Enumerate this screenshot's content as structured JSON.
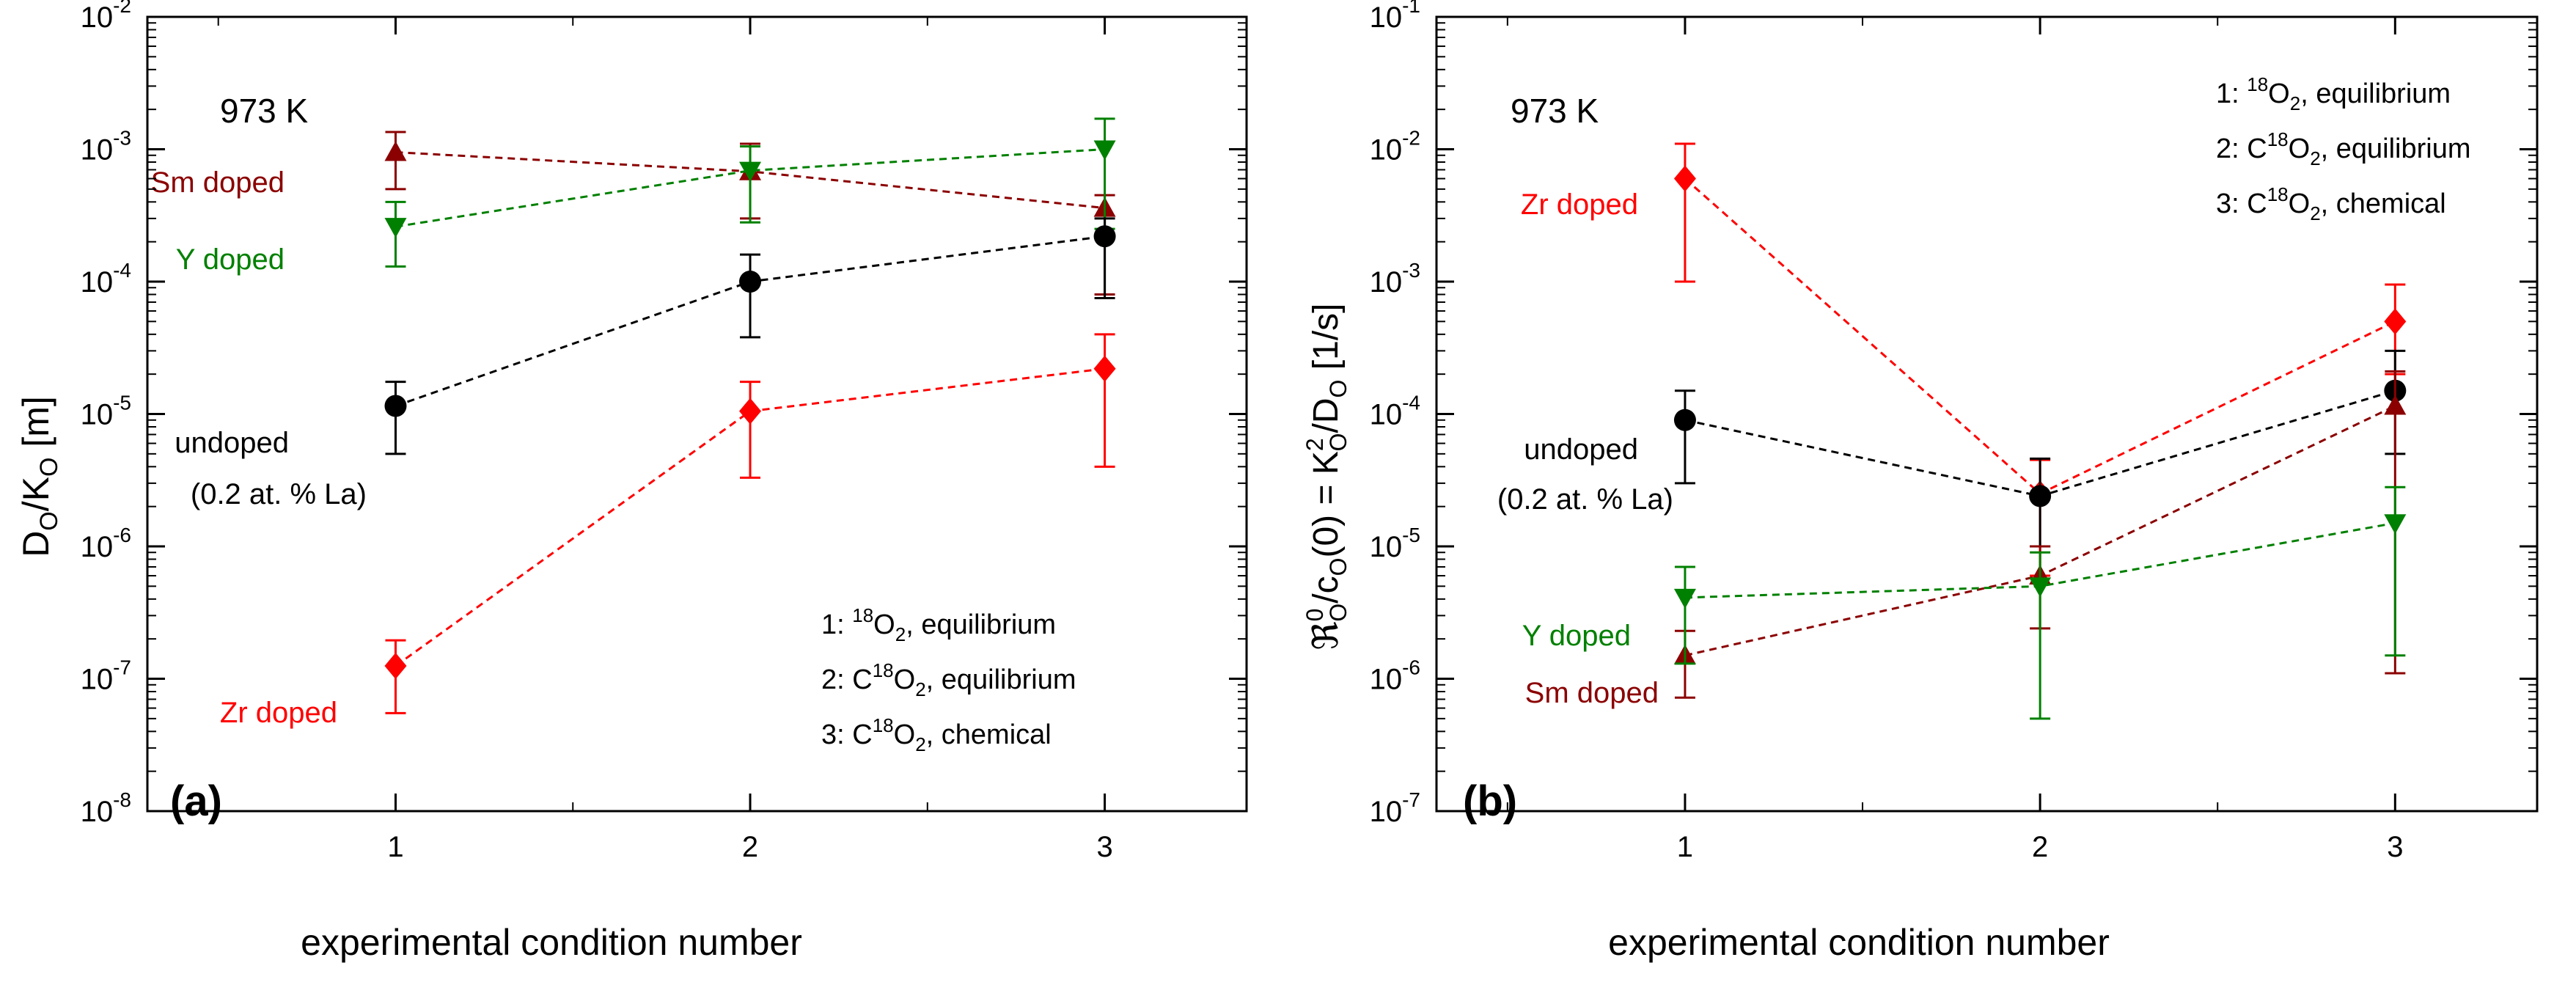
{
  "colors": {
    "undoped": "#000000",
    "Sm doped": "#8b0000",
    "Y doped": "#008000",
    "Zr doped": "#ff0000"
  },
  "chart_data": [
    {
      "id": "a",
      "type": "scatter",
      "scale_y": "log",
      "panel_label": "(a)",
      "temperature": "973 K",
      "xlabel": "experimental condition number",
      "ylabel": "D_O/K_O [m]",
      "xlim": [
        0.3,
        3.4
      ],
      "ylim": [
        1e-08,
        0.01
      ],
      "x_ticks": [
        "1",
        "2",
        "3"
      ],
      "y_ticks": [
        {
          "base": "10",
          "exp": "-8"
        },
        {
          "base": "10",
          "exp": "-7"
        },
        {
          "base": "10",
          "exp": "-6"
        },
        {
          "base": "10",
          "exp": "-5"
        },
        {
          "base": "10",
          "exp": "-4"
        },
        {
          "base": "10",
          "exp": "-3"
        },
        {
          "base": "10",
          "exp": "-2"
        }
      ],
      "series": [
        {
          "name": "Sm doped",
          "marker": "triangle-up",
          "x": [
            1,
            2,
            3
          ],
          "y": [
            0.00095,
            0.00068,
            0.00036
          ],
          "err_low": [
            0.0005,
            0.0003,
            8e-05
          ],
          "err_high": [
            0.00135,
            0.0011,
            0.00045
          ]
        },
        {
          "name": "Y doped",
          "marker": "triangle-down",
          "x": [
            1,
            2,
            3
          ],
          "y": [
            0.00026,
            0.00069,
            0.001
          ],
          "err_low": [
            0.00013,
            0.00028,
            0.00025
          ],
          "err_high": [
            0.0004,
            0.00105,
            0.0017
          ]
        },
        {
          "name": "undoped",
          "marker": "circle",
          "x": [
            1,
            2,
            3
          ],
          "y": [
            1.15e-05,
            0.0001,
            0.00022
          ],
          "err_low": [
            5e-06,
            3.8e-05,
            7.5e-05
          ],
          "err_high": [
            1.75e-05,
            0.00016,
            0.0003
          ]
        },
        {
          "name": "Zr doped",
          "marker": "diamond",
          "x": [
            1,
            2,
            3
          ],
          "y": [
            1.25e-07,
            1.05e-05,
            2.2e-05
          ],
          "err_low": [
            5.5e-08,
            3.3e-06,
            4e-06
          ],
          "err_high": [
            1.95e-07,
            1.75e-05,
            4e-05
          ]
        }
      ],
      "series_labels": [
        {
          "series": "Sm doped",
          "text": "Sm doped"
        },
        {
          "series": "Y doped",
          "text": "Y doped"
        },
        {
          "series": "undoped",
          "text": "undoped"
        },
        {
          "series": "undoped",
          "text": "(0.2 at. % La)"
        },
        {
          "series": "Zr doped",
          "text": "Zr doped"
        }
      ],
      "conditions": [
        {
          "prefix": "1: ",
          "sup": "18",
          "main": "O",
          "sub": "2",
          "suffix": ", equilibrium"
        },
        {
          "prefix": "2: C",
          "sup": "18",
          "main": "O",
          "sub": "2",
          "suffix": ", equilibrium"
        },
        {
          "prefix": "3: C",
          "sup": "18",
          "main": "O",
          "sub": "2",
          "suffix": ", chemical"
        }
      ]
    },
    {
      "id": "b",
      "type": "scatter",
      "scale_y": "log",
      "panel_label": "(b)",
      "temperature": "973 K",
      "xlabel": "experimental condition number",
      "ylabel": "ℜ_O^0/c_O(0) = K_O^2/D_O [1/s]",
      "xlim": [
        0.3,
        3.4
      ],
      "ylim": [
        1e-07,
        0.1
      ],
      "x_ticks": [
        "1",
        "2",
        "3"
      ],
      "y_ticks": [
        {
          "base": "10",
          "exp": "-7"
        },
        {
          "base": "10",
          "exp": "-6"
        },
        {
          "base": "10",
          "exp": "-5"
        },
        {
          "base": "10",
          "exp": "-4"
        },
        {
          "base": "10",
          "exp": "-3"
        },
        {
          "base": "10",
          "exp": "-2"
        },
        {
          "base": "10",
          "exp": "-1"
        }
      ],
      "series": [
        {
          "name": "Zr doped",
          "marker": "diamond",
          "x": [
            1,
            2,
            3
          ],
          "y": [
            0.006,
            2.5e-05,
            0.0005
          ],
          "err_low": [
            0.001,
            6e-06,
            0.0002
          ],
          "err_high": [
            0.011,
            4.5e-05,
            0.00095
          ]
        },
        {
          "name": "undoped",
          "marker": "circle",
          "x": [
            1,
            2,
            3
          ],
          "y": [
            9e-05,
            2.4e-05,
            0.00015
          ],
          "err_low": [
            3e-05,
            1e-05,
            5e-05
          ],
          "err_high": [
            0.00015,
            4.6e-05,
            0.0003
          ]
        },
        {
          "name": "Sm doped",
          "marker": "triangle-up",
          "x": [
            1,
            2,
            3
          ],
          "y": [
            1.5e-06,
            6e-06,
            0.000115
          ],
          "err_low": [
            7.2e-07,
            2.4e-06,
            1.1e-06
          ],
          "err_high": [
            2.3e-06,
            1e-05,
            0.00021
          ]
        },
        {
          "name": "Y doped",
          "marker": "triangle-down",
          "x": [
            1,
            2,
            3
          ],
          "y": [
            4.1e-06,
            5e-06,
            1.5e-05
          ],
          "err_low": [
            1.3e-06,
            5e-07,
            1.5e-06
          ],
          "err_high": [
            7e-06,
            9e-06,
            2.8e-05
          ]
        }
      ],
      "series_labels": [
        {
          "series": "Zr doped",
          "text": "Zr doped"
        },
        {
          "series": "undoped",
          "text": "undoped"
        },
        {
          "series": "undoped",
          "text": "(0.2 at. % La)"
        },
        {
          "series": "Y doped",
          "text": "Y doped"
        },
        {
          "series": "Sm doped",
          "text": "Sm doped"
        }
      ],
      "conditions": [
        {
          "prefix": "1: ",
          "sup": "18",
          "main": "O",
          "sub": "2",
          "suffix": ", equilibrium"
        },
        {
          "prefix": "2: C",
          "sup": "18",
          "main": "O",
          "sub": "2",
          "suffix": ", equilibrium"
        },
        {
          "prefix": "3: C",
          "sup": "18",
          "main": "O",
          "sub": "2",
          "suffix": ", chemical"
        }
      ]
    }
  ]
}
